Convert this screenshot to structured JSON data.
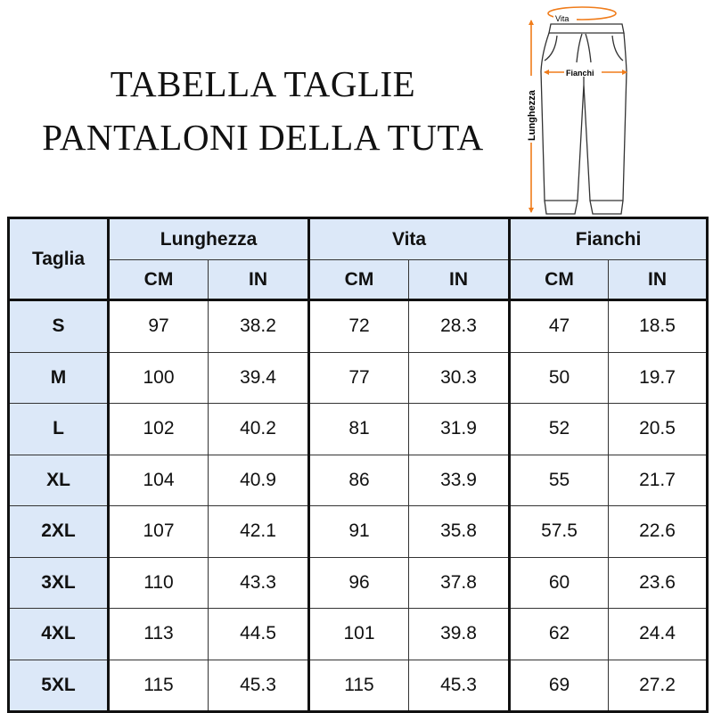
{
  "title": {
    "line1": "TABELLA TAGLIE",
    "line2": "PANTALONI DELLA TUTA"
  },
  "illustration": {
    "waist_label": "Vita",
    "hip_label": "Fianchi",
    "length_label": "Lunghezza",
    "accent_color": "#f07c1a"
  },
  "table": {
    "size_header": "Taglia",
    "groups": [
      "Lunghezza",
      "Vita",
      "Fianchi"
    ],
    "units": [
      "CM",
      "IN"
    ],
    "header_bg": "#dce8f8",
    "rows": [
      {
        "size": "S",
        "values": [
          "97",
          "38.2",
          "72",
          "28.3",
          "47",
          "18.5"
        ]
      },
      {
        "size": "M",
        "values": [
          "100",
          "39.4",
          "77",
          "30.3",
          "50",
          "19.7"
        ]
      },
      {
        "size": "L",
        "values": [
          "102",
          "40.2",
          "81",
          "31.9",
          "52",
          "20.5"
        ]
      },
      {
        "size": "XL",
        "values": [
          "104",
          "40.9",
          "86",
          "33.9",
          "55",
          "21.7"
        ]
      },
      {
        "size": "2XL",
        "values": [
          "107",
          "42.1",
          "91",
          "35.8",
          "57.5",
          "22.6"
        ]
      },
      {
        "size": "3XL",
        "values": [
          "110",
          "43.3",
          "96",
          "37.8",
          "60",
          "23.6"
        ]
      },
      {
        "size": "4XL",
        "values": [
          "113",
          "44.5",
          "101",
          "39.8",
          "62",
          "24.4"
        ]
      },
      {
        "size": "5XL",
        "values": [
          "115",
          "45.3",
          "115",
          "45.3",
          "69",
          "27.2"
        ]
      }
    ]
  }
}
